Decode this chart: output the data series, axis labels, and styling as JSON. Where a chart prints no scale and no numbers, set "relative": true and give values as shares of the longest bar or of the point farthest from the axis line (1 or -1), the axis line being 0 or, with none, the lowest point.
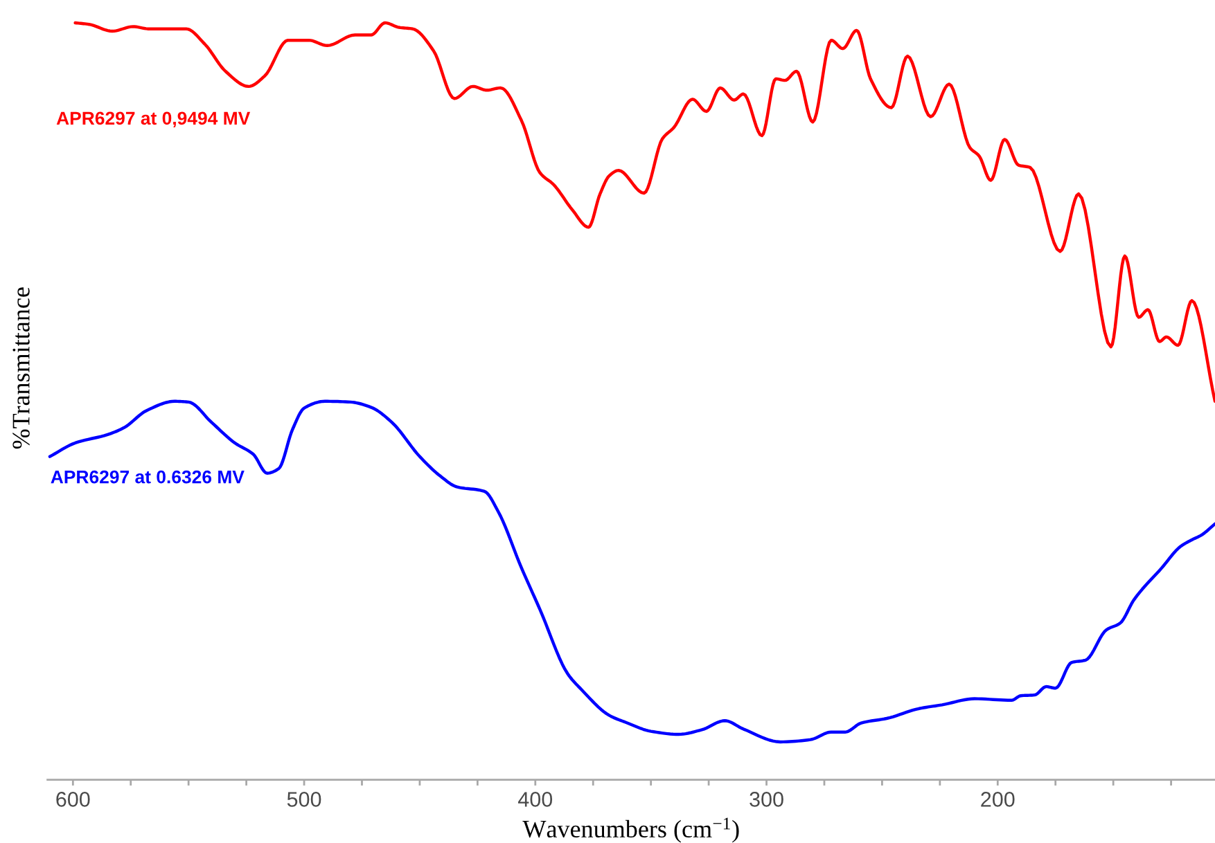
{
  "chart_data": {
    "type": "line",
    "relative": true,
    "xlabel": "Wavenumbers (cm$^{−1}$)",
    "ylabel": "%Transmittance",
    "tick_labels": "x",
    "xlim": [
      611,
      106
    ],
    "xticks": [
      600,
      {
        "value": 575,
        "label": null
      },
      {
        "value": 550,
        "label": null
      },
      {
        "value": 525,
        "label": null
      },
      500,
      {
        "value": 475,
        "label": null
      },
      {
        "value": 450,
        "label": null
      },
      {
        "value": 425,
        "label": null
      },
      400,
      {
        "value": 375,
        "label": null
      },
      {
        "value": 350,
        "label": null
      },
      {
        "value": 325,
        "label": null
      },
      300,
      {
        "value": 275,
        "label": null
      },
      {
        "value": 250,
        "label": null
      },
      {
        "value": 225,
        "label": null
      },
      200,
      {
        "value": 175,
        "label": null
      },
      {
        "value": 150,
        "label": null
      },
      {
        "value": 125,
        "label": null
      }
    ],
    "series": [
      {
        "name": "APR6297 at 0,9494 MV",
        "color": "#ff0000",
        "x": [
          599,
          593,
          583,
          574,
          567,
          551,
          543,
          534,
          524,
          517,
          507,
          498,
          490,
          478,
          471,
          465,
          459,
          453,
          444,
          435,
          427,
          421,
          415,
          406,
          398,
          392,
          384,
          377,
          372,
          368,
          364,
          353,
          345,
          340,
          332,
          326,
          320,
          314,
          310,
          302,
          296,
          292,
          287,
          280,
          272,
          267,
          261,
          255,
          246,
          239,
          229,
          221,
          212,
          208,
          203,
          197,
          191,
          186,
          173,
          165,
          151,
          145,
          139,
          135,
          130,
          127,
          122,
          116,
          106
        ],
        "values": [
          1.0,
          0.998,
          0.989,
          0.995,
          0.992,
          0.992,
          0.972,
          0.936,
          0.916,
          0.93,
          0.977,
          0.977,
          0.97,
          0.984,
          0.984,
          1.0,
          0.994,
          0.992,
          0.963,
          0.9,
          0.916,
          0.911,
          0.914,
          0.871,
          0.802,
          0.786,
          0.753,
          0.73,
          0.774,
          0.798,
          0.805,
          0.775,
          0.847,
          0.862,
          0.899,
          0.883,
          0.914,
          0.898,
          0.906,
          0.851,
          0.926,
          0.924,
          0.936,
          0.869,
          0.977,
          0.966,
          0.99,
          0.926,
          0.888,
          0.956,
          0.876,
          0.919,
          0.835,
          0.824,
          0.792,
          0.846,
          0.812,
          0.809,
          0.698,
          0.774,
          0.572,
          0.692,
          0.611,
          0.621,
          0.579,
          0.585,
          0.574,
          0.633,
          0.5
        ]
      },
      {
        "name": "APR6297 at 0.6326 MV",
        "color": "#0000ff",
        "x": [
          610,
          599,
          585,
          578,
          568,
          556,
          550,
          540,
          530,
          522,
          516,
          511,
          505,
          500,
          491,
          480,
          471,
          462,
          450,
          441,
          434,
          422,
          416,
          406,
          398,
          386,
          380,
          368,
          361,
          350,
          338,
          328,
          318,
          310,
          294,
          281,
          272,
          266,
          259,
          248,
          234,
          224,
          210,
          194,
          190,
          184,
          179,
          175,
          168,
          162,
          153,
          147,
          141,
          129,
          121,
          116,
          112,
          106
        ],
        "values": [
          0.427,
          0.445,
          0.456,
          0.465,
          0.488,
          0.5,
          0.499,
          0.472,
          0.445,
          0.43,
          0.405,
          0.411,
          0.463,
          0.491,
          0.5,
          0.499,
          0.492,
          0.472,
          0.427,
          0.401,
          0.387,
          0.381,
          0.354,
          0.28,
          0.225,
          0.14,
          0.119,
          0.085,
          0.076,
          0.064,
          0.06,
          0.066,
          0.078,
          0.067,
          0.05,
          0.053,
          0.063,
          0.063,
          0.075,
          0.081,
          0.094,
          0.099,
          0.107,
          0.105,
          0.111,
          0.112,
          0.123,
          0.121,
          0.155,
          0.158,
          0.198,
          0.207,
          0.238,
          0.28,
          0.308,
          0.317,
          0.323,
          0.338
        ]
      }
    ]
  }
}
